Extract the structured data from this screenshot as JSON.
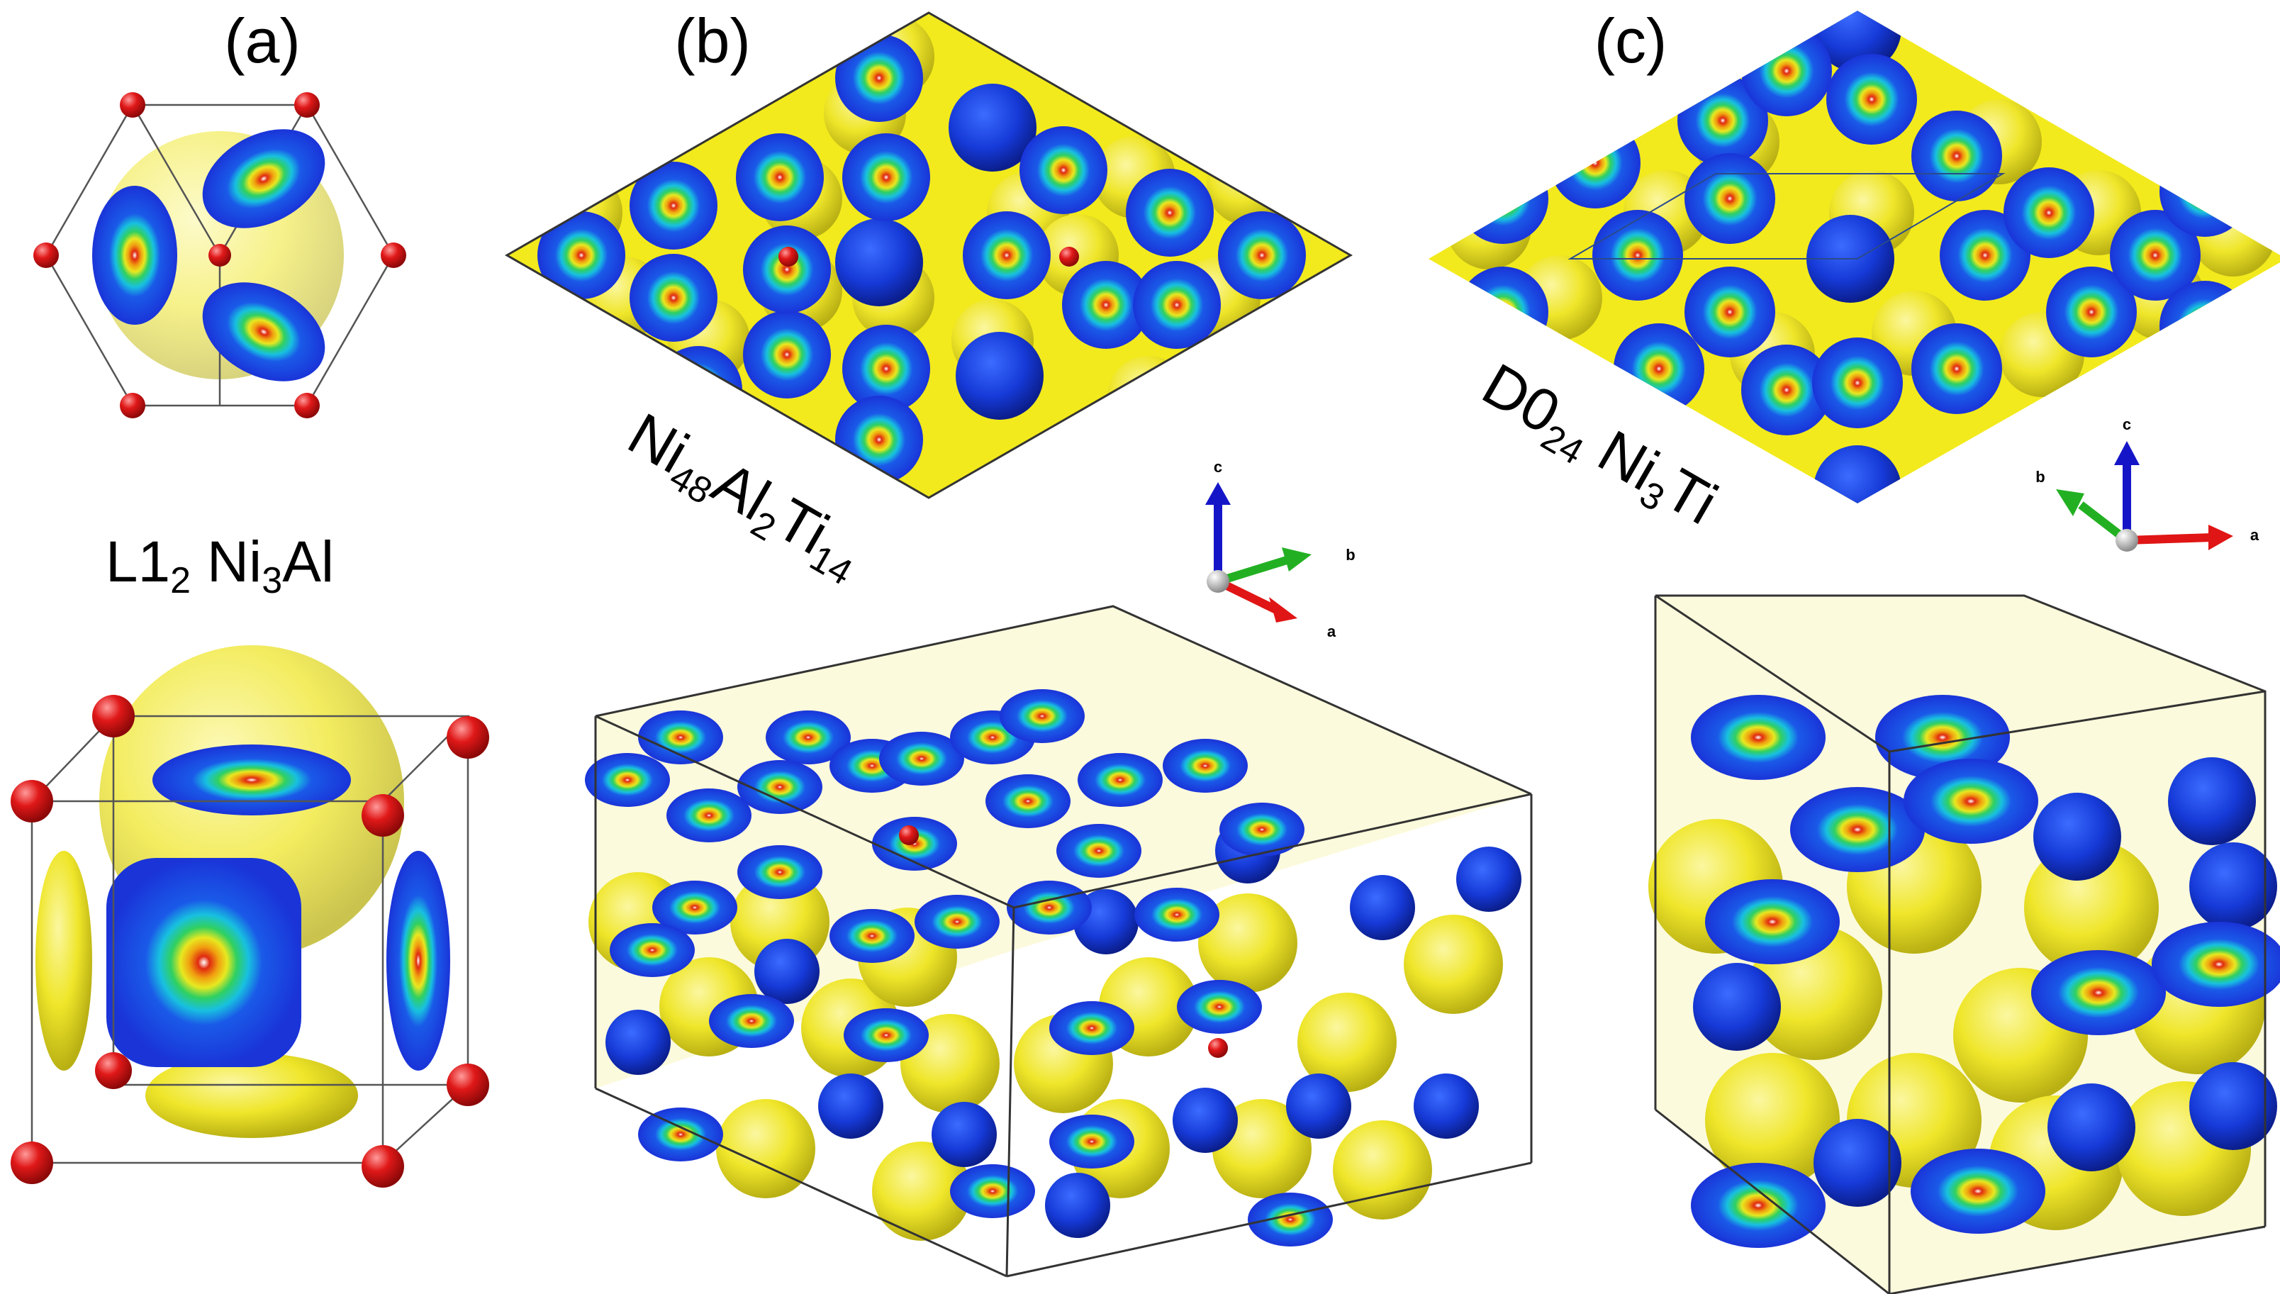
{
  "panels": [
    {
      "id": "a",
      "label": "(a)",
      "formula": {
        "prefix": "L1",
        "prefix_sub": "2",
        "space": " ",
        "parts": [
          {
            "t": "Ni"
          },
          {
            "s": "3"
          },
          {
            "t": "Al"
          }
        ]
      }
    },
    {
      "id": "b",
      "label": "(b)",
      "formula": {
        "parts": [
          {
            "t": "Ni"
          },
          {
            "s": "48"
          },
          {
            "t": "Al"
          },
          {
            "s": "2"
          },
          {
            "t": "Ti"
          },
          {
            "s": "14"
          }
        ]
      }
    },
    {
      "id": "c",
      "label": "(c)",
      "formula": {
        "parts": [
          {
            "t": "D0"
          },
          {
            "s": "24"
          },
          {
            "t": " Ni"
          },
          {
            "s": "3"
          },
          {
            "t": "Ti"
          }
        ]
      }
    }
  ],
  "axes": {
    "a": "a",
    "b": "b",
    "c": "c"
  },
  "colors": {
    "isosurface_yellow": "#f2ea1c",
    "isosurface_blue": "#1a3fe0",
    "atom_red": "#e01818",
    "atom_light_blue": "#9fdcf0",
    "axis_a": "#e01515",
    "axis_b": "#22b022",
    "axis_c": "#1515c8"
  },
  "icons": [
    "section-disc-icon",
    "red-atom-icon",
    "axis-triad-icon"
  ]
}
